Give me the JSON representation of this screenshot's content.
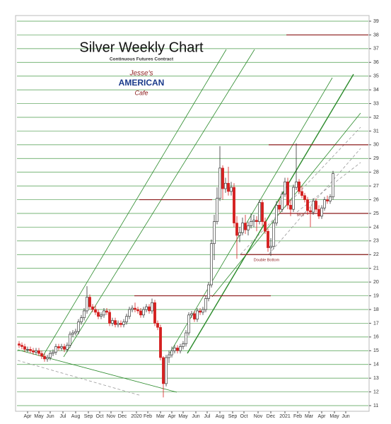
{
  "chart_data": {
    "type": "candlestick",
    "title": "Silver Weekly Chart",
    "subtitle": "Continuous Futures Contract",
    "logo": [
      "Jesse's",
      "AMERICAN",
      "Cafe"
    ],
    "annotations": [
      {
        "text": "Double Bottom",
        "x": 88,
        "y": 21.6
      },
      {
        "text": "$5.8",
        "x": 100,
        "y": 24.9
      }
    ],
    "up_color": "#ffffff",
    "down_color": "#d42020",
    "grid": true,
    "grid_color": "#2a8a2a",
    "level_color": "#8b1a1a",
    "resistance_levels": [
      38,
      30,
      26,
      25,
      22,
      19
    ],
    "ylim": [
      11,
      39
    ],
    "yticks": [
      11,
      12,
      13,
      14,
      15,
      16,
      17,
      18,
      19,
      20,
      21,
      22,
      23,
      24,
      25,
      26,
      27,
      28,
      29,
      30,
      31,
      32,
      33,
      34,
      35,
      36,
      37,
      38,
      39
    ],
    "xlim": [
      0,
      124
    ],
    "xticks": [
      {
        "value": 3.5,
        "label": "Apr"
      },
      {
        "value": 7.5,
        "label": "May"
      },
      {
        "value": 11.5,
        "label": "Jun"
      },
      {
        "value": 16,
        "label": "Jul"
      },
      {
        "value": 20.5,
        "label": "Aug"
      },
      {
        "value": 25,
        "label": "Sep"
      },
      {
        "value": 29,
        "label": "Oct"
      },
      {
        "value": 33,
        "label": "Nov"
      },
      {
        "value": 37,
        "label": "Dec"
      },
      {
        "value": 42,
        "label": "2020"
      },
      {
        "value": 46,
        "label": "Feb"
      },
      {
        "value": 50.5,
        "label": "Mar"
      },
      {
        "value": 54.5,
        "label": "Apr"
      },
      {
        "value": 58.5,
        "label": "May"
      },
      {
        "value": 63,
        "label": "Jun"
      },
      {
        "value": 67,
        "label": "Jul"
      },
      {
        "value": 71.5,
        "label": "Aug"
      },
      {
        "value": 76,
        "label": "Sep"
      },
      {
        "value": 80,
        "label": "Oct"
      },
      {
        "value": 85,
        "label": "Nov"
      },
      {
        "value": 89.5,
        "label": "Dec"
      },
      {
        "value": 94.5,
        "label": "2021"
      },
      {
        "value": 99,
        "label": "Feb"
      },
      {
        "value": 103,
        "label": "Mar"
      },
      {
        "value": 107.5,
        "label": "Apr"
      },
      {
        "value": 112,
        "label": "May"
      },
      {
        "value": 116,
        "label": "Jun"
      }
    ],
    "ohlc": [
      [
        15.5,
        15.7,
        15.2,
        15.4
      ],
      [
        15.4,
        15.6,
        15.1,
        15.3
      ],
      [
        15.3,
        15.5,
        14.9,
        15.1
      ],
      [
        15.1,
        15.3,
        14.9,
        15.1
      ],
      [
        15.1,
        15.3,
        14.8,
        15.0
      ],
      [
        15.0,
        15.2,
        14.7,
        14.9
      ],
      [
        14.9,
        15.2,
        14.7,
        15.0
      ],
      [
        15.0,
        15.2,
        14.6,
        14.8
      ],
      [
        14.8,
        15.0,
        14.4,
        14.6
      ],
      [
        14.6,
        14.8,
        14.2,
        14.4
      ],
      [
        14.4,
        14.7,
        14.2,
        14.5
      ],
      [
        14.5,
        15.0,
        14.3,
        14.8
      ],
      [
        14.8,
        15.1,
        14.6,
        14.9
      ],
      [
        14.9,
        15.5,
        14.7,
        15.3
      ],
      [
        15.3,
        15.5,
        15.0,
        15.2
      ],
      [
        15.2,
        15.5,
        15.0,
        15.3
      ],
      [
        15.3,
        15.5,
        14.9,
        15.1
      ],
      [
        15.1,
        15.6,
        14.9,
        15.4
      ],
      [
        15.4,
        16.4,
        15.2,
        16.2
      ],
      [
        16.2,
        16.5,
        16.0,
        16.3
      ],
      [
        16.3,
        16.6,
        16.1,
        16.4
      ],
      [
        16.4,
        17.3,
        16.2,
        17.1
      ],
      [
        17.1,
        17.6,
        16.9,
        17.4
      ],
      [
        17.4,
        18.1,
        17.2,
        17.9
      ],
      [
        17.9,
        19.7,
        17.7,
        18.9
      ],
      [
        18.9,
        19.1,
        18.0,
        18.2
      ],
      [
        18.2,
        18.4,
        17.8,
        18.0
      ],
      [
        18.0,
        18.3,
        17.6,
        17.8
      ],
      [
        17.8,
        18.0,
        17.3,
        17.5
      ],
      [
        17.5,
        17.8,
        17.3,
        17.6
      ],
      [
        17.6,
        18.1,
        17.4,
        17.9
      ],
      [
        17.9,
        18.1,
        17.6,
        17.8
      ],
      [
        17.8,
        18.0,
        16.8,
        17.0
      ],
      [
        17.0,
        17.4,
        16.8,
        17.2
      ],
      [
        17.2,
        17.4,
        16.7,
        16.9
      ],
      [
        16.9,
        17.2,
        16.7,
        17.0
      ],
      [
        17.0,
        17.2,
        16.7,
        16.9
      ],
      [
        16.9,
        17.3,
        16.7,
        17.1
      ],
      [
        17.1,
        17.7,
        16.9,
        17.5
      ],
      [
        17.5,
        18.2,
        17.3,
        18.0
      ],
      [
        18.0,
        18.3,
        17.8,
        18.1
      ],
      [
        18.1,
        18.5,
        17.8,
        18.0
      ],
      [
        18.0,
        18.2,
        17.7,
        17.9
      ],
      [
        17.9,
        18.1,
        17.4,
        17.6
      ],
      [
        17.6,
        18.2,
        17.4,
        18.0
      ],
      [
        18.0,
        18.4,
        17.8,
        18.2
      ],
      [
        18.2,
        18.4,
        17.7,
        17.9
      ],
      [
        17.9,
        18.8,
        17.7,
        18.5
      ],
      [
        18.5,
        18.7,
        16.8,
        17.0
      ],
      [
        17.0,
        17.2,
        16.5,
        16.7
      ],
      [
        16.7,
        16.9,
        14.3,
        14.5
      ],
      [
        14.5,
        14.6,
        11.6,
        12.6
      ],
      [
        12.6,
        14.7,
        12.4,
        14.5
      ],
      [
        14.5,
        15.0,
        14.1,
        14.7
      ],
      [
        14.7,
        15.3,
        14.5,
        15.0
      ],
      [
        15.0,
        15.4,
        14.8,
        15.2
      ],
      [
        15.2,
        15.4,
        14.8,
        15.0
      ],
      [
        15.0,
        15.5,
        14.8,
        15.3
      ],
      [
        15.3,
        15.7,
        15.1,
        15.5
      ],
      [
        15.5,
        16.5,
        15.3,
        16.3
      ],
      [
        16.3,
        17.8,
        16.1,
        17.6
      ],
      [
        17.6,
        17.9,
        17.4,
        17.7
      ],
      [
        17.7,
        17.9,
        17.1,
        17.3
      ],
      [
        17.3,
        18.1,
        17.1,
        17.9
      ],
      [
        17.9,
        18.1,
        17.6,
        17.8
      ],
      [
        17.8,
        18.2,
        17.6,
        18.0
      ],
      [
        18.0,
        19.0,
        17.8,
        18.8
      ],
      [
        18.8,
        20.0,
        18.6,
        19.8
      ],
      [
        19.8,
        23.1,
        19.6,
        22.8
      ],
      [
        22.8,
        24.9,
        21.6,
        24.4
      ],
      [
        24.4,
        26.9,
        24.2,
        26.1
      ],
      [
        26.1,
        29.9,
        25.9,
        28.3
      ],
      [
        28.3,
        28.5,
        26.0,
        26.8
      ],
      [
        26.8,
        27.6,
        26.5,
        27.2
      ],
      [
        27.2,
        28.4,
        26.3,
        26.6
      ],
      [
        26.6,
        27.3,
        26.3,
        26.9
      ],
      [
        26.9,
        27.2,
        24.0,
        24.3
      ],
      [
        24.3,
        24.8,
        21.7,
        23.4
      ],
      [
        23.4,
        24.0,
        22.9,
        23.6
      ],
      [
        23.6,
        24.7,
        23.4,
        24.3
      ],
      [
        24.3,
        24.9,
        23.5,
        23.8
      ],
      [
        23.8,
        24.4,
        23.4,
        24.1
      ],
      [
        24.1,
        25.0,
        23.9,
        24.4
      ],
      [
        24.4,
        24.9,
        24.0,
        24.5
      ],
      [
        24.5,
        24.8,
        23.7,
        24.4
      ],
      [
        24.4,
        26.0,
        24.2,
        25.8
      ],
      [
        25.8,
        26.0,
        24.1,
        24.4
      ],
      [
        24.4,
        24.7,
        23.5,
        23.7
      ],
      [
        23.7,
        23.9,
        22.2,
        22.5
      ],
      [
        22.5,
        23.2,
        21.9,
        22.6
      ],
      [
        22.6,
        24.5,
        22.4,
        24.3
      ],
      [
        24.3,
        25.9,
        24.1,
        25.6
      ],
      [
        25.6,
        26.0,
        25.1,
        25.3
      ],
      [
        25.3,
        26.6,
        25.1,
        26.4
      ],
      [
        26.4,
        27.6,
        26.2,
        27.3
      ],
      [
        27.3,
        27.6,
        25.3,
        25.6
      ],
      [
        25.6,
        26.0,
        24.8,
        25.3
      ],
      [
        25.3,
        27.1,
        25.1,
        26.9
      ],
      [
        26.9,
        30.1,
        26.7,
        27.3
      ],
      [
        27.3,
        27.5,
        26.4,
        26.6
      ],
      [
        26.6,
        27.0,
        26.1,
        26.3
      ],
      [
        26.3,
        26.5,
        25.8,
        26.0
      ],
      [
        26.0,
        26.2,
        24.9,
        25.2
      ],
      [
        25.2,
        25.5,
        24.0,
        25.1
      ],
      [
        25.1,
        26.1,
        24.9,
        25.9
      ],
      [
        25.9,
        26.1,
        25.1,
        25.3
      ],
      [
        25.3,
        25.6,
        24.6,
        24.8
      ],
      [
        24.8,
        25.6,
        24.6,
        25.4
      ],
      [
        25.4,
        26.2,
        25.2,
        26.0
      ],
      [
        26.0,
        26.3,
        25.7,
        25.9
      ],
      [
        25.9,
        26.4,
        25.7,
        26.2
      ],
      [
        26.2,
        28.1,
        26.0,
        27.9
      ]
    ]
  }
}
